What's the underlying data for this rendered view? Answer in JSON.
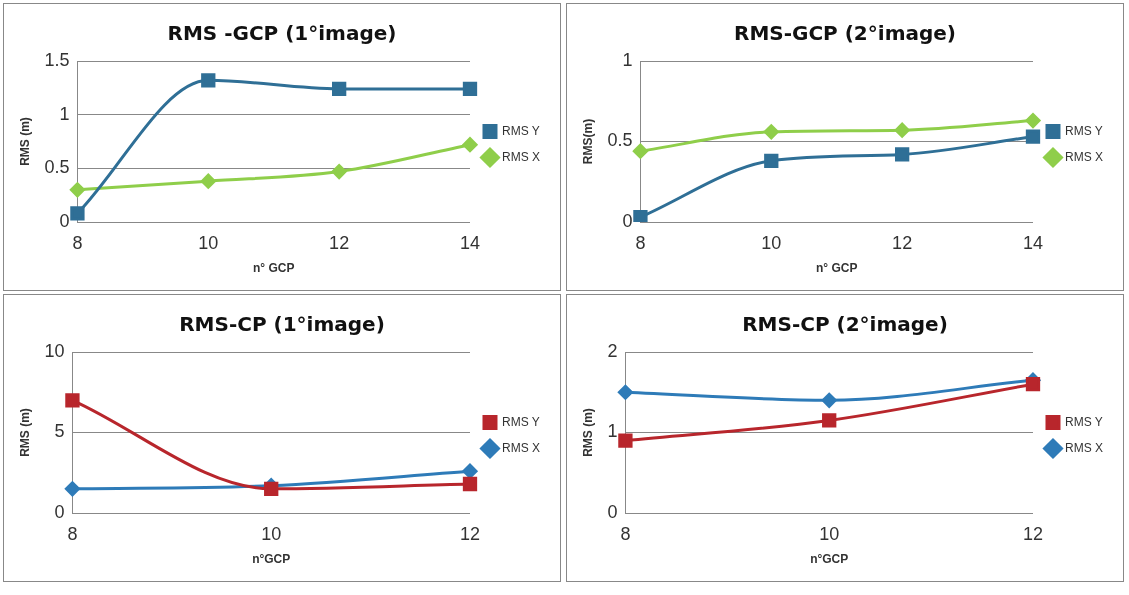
{
  "chart_data": [
    {
      "type": "line",
      "title": "RMS -GCP (1°image)",
      "xlabel": "n° GCP",
      "ylabel": "RMS (m)",
      "categories": [
        "8",
        "10",
        "12",
        "14"
      ],
      "ylim": [
        0,
        1.5
      ],
      "yticks": [
        0,
        0.5,
        1,
        1.5
      ],
      "grid": "y",
      "legend": "right",
      "series": [
        {
          "name": "RMS X",
          "color": "#8fce4a",
          "marker": "diamond",
          "values": [
            0.3,
            0.38,
            0.47,
            0.72
          ]
        },
        {
          "name": "RMS Y",
          "color": "#2f6f96",
          "marker": "square",
          "values": [
            0.08,
            1.32,
            1.24,
            1.24
          ]
        }
      ]
    },
    {
      "type": "line",
      "title": "RMS-GCP (2°image)",
      "xlabel": "n° GCP",
      "ylabel": "RMS(m)",
      "categories": [
        "8",
        "10",
        "12",
        "14"
      ],
      "ylim": [
        0,
        1
      ],
      "yticks": [
        0,
        0.5,
        1
      ],
      "grid": "y",
      "legend": "right",
      "series": [
        {
          "name": "RMS X",
          "color": "#8fce4a",
          "marker": "diamond",
          "values": [
            0.44,
            0.56,
            0.57,
            0.63
          ]
        },
        {
          "name": "RMS Y",
          "color": "#2f6f96",
          "marker": "square",
          "values": [
            0.03,
            0.38,
            0.42,
            0.53
          ]
        }
      ]
    },
    {
      "type": "line",
      "title": "RMS-CP (1°image)",
      "xlabel": "n°GCP",
      "ylabel": "RMS (m)",
      "categories": [
        "8",
        "10",
        "12"
      ],
      "ylim": [
        0,
        10
      ],
      "yticks": [
        0,
        5,
        10
      ],
      "grid": "y",
      "legend": "right",
      "series": [
        {
          "name": "RMS X",
          "color": "#2e7bb8",
          "marker": "diamond",
          "values": [
            1.5,
            1.7,
            2.6
          ]
        },
        {
          "name": "RMS Y",
          "color": "#b8262c",
          "marker": "square",
          "values": [
            7,
            1.5,
            1.8
          ]
        }
      ]
    },
    {
      "type": "line",
      "title": "RMS-CP (2°image)",
      "xlabel": "n°GCP",
      "ylabel": "RMS (m)",
      "categories": [
        "8",
        "10",
        "12"
      ],
      "ylim": [
        0,
        2
      ],
      "yticks": [
        0,
        1,
        2
      ],
      "grid": "y",
      "legend": "right",
      "series": [
        {
          "name": "RMS X",
          "color": "#2e7bb8",
          "marker": "diamond",
          "values": [
            1.5,
            1.4,
            1.65
          ]
        },
        {
          "name": "RMS Y",
          "color": "#b8262c",
          "marker": "square",
          "values": [
            0.9,
            1.15,
            1.6
          ]
        }
      ]
    }
  ]
}
